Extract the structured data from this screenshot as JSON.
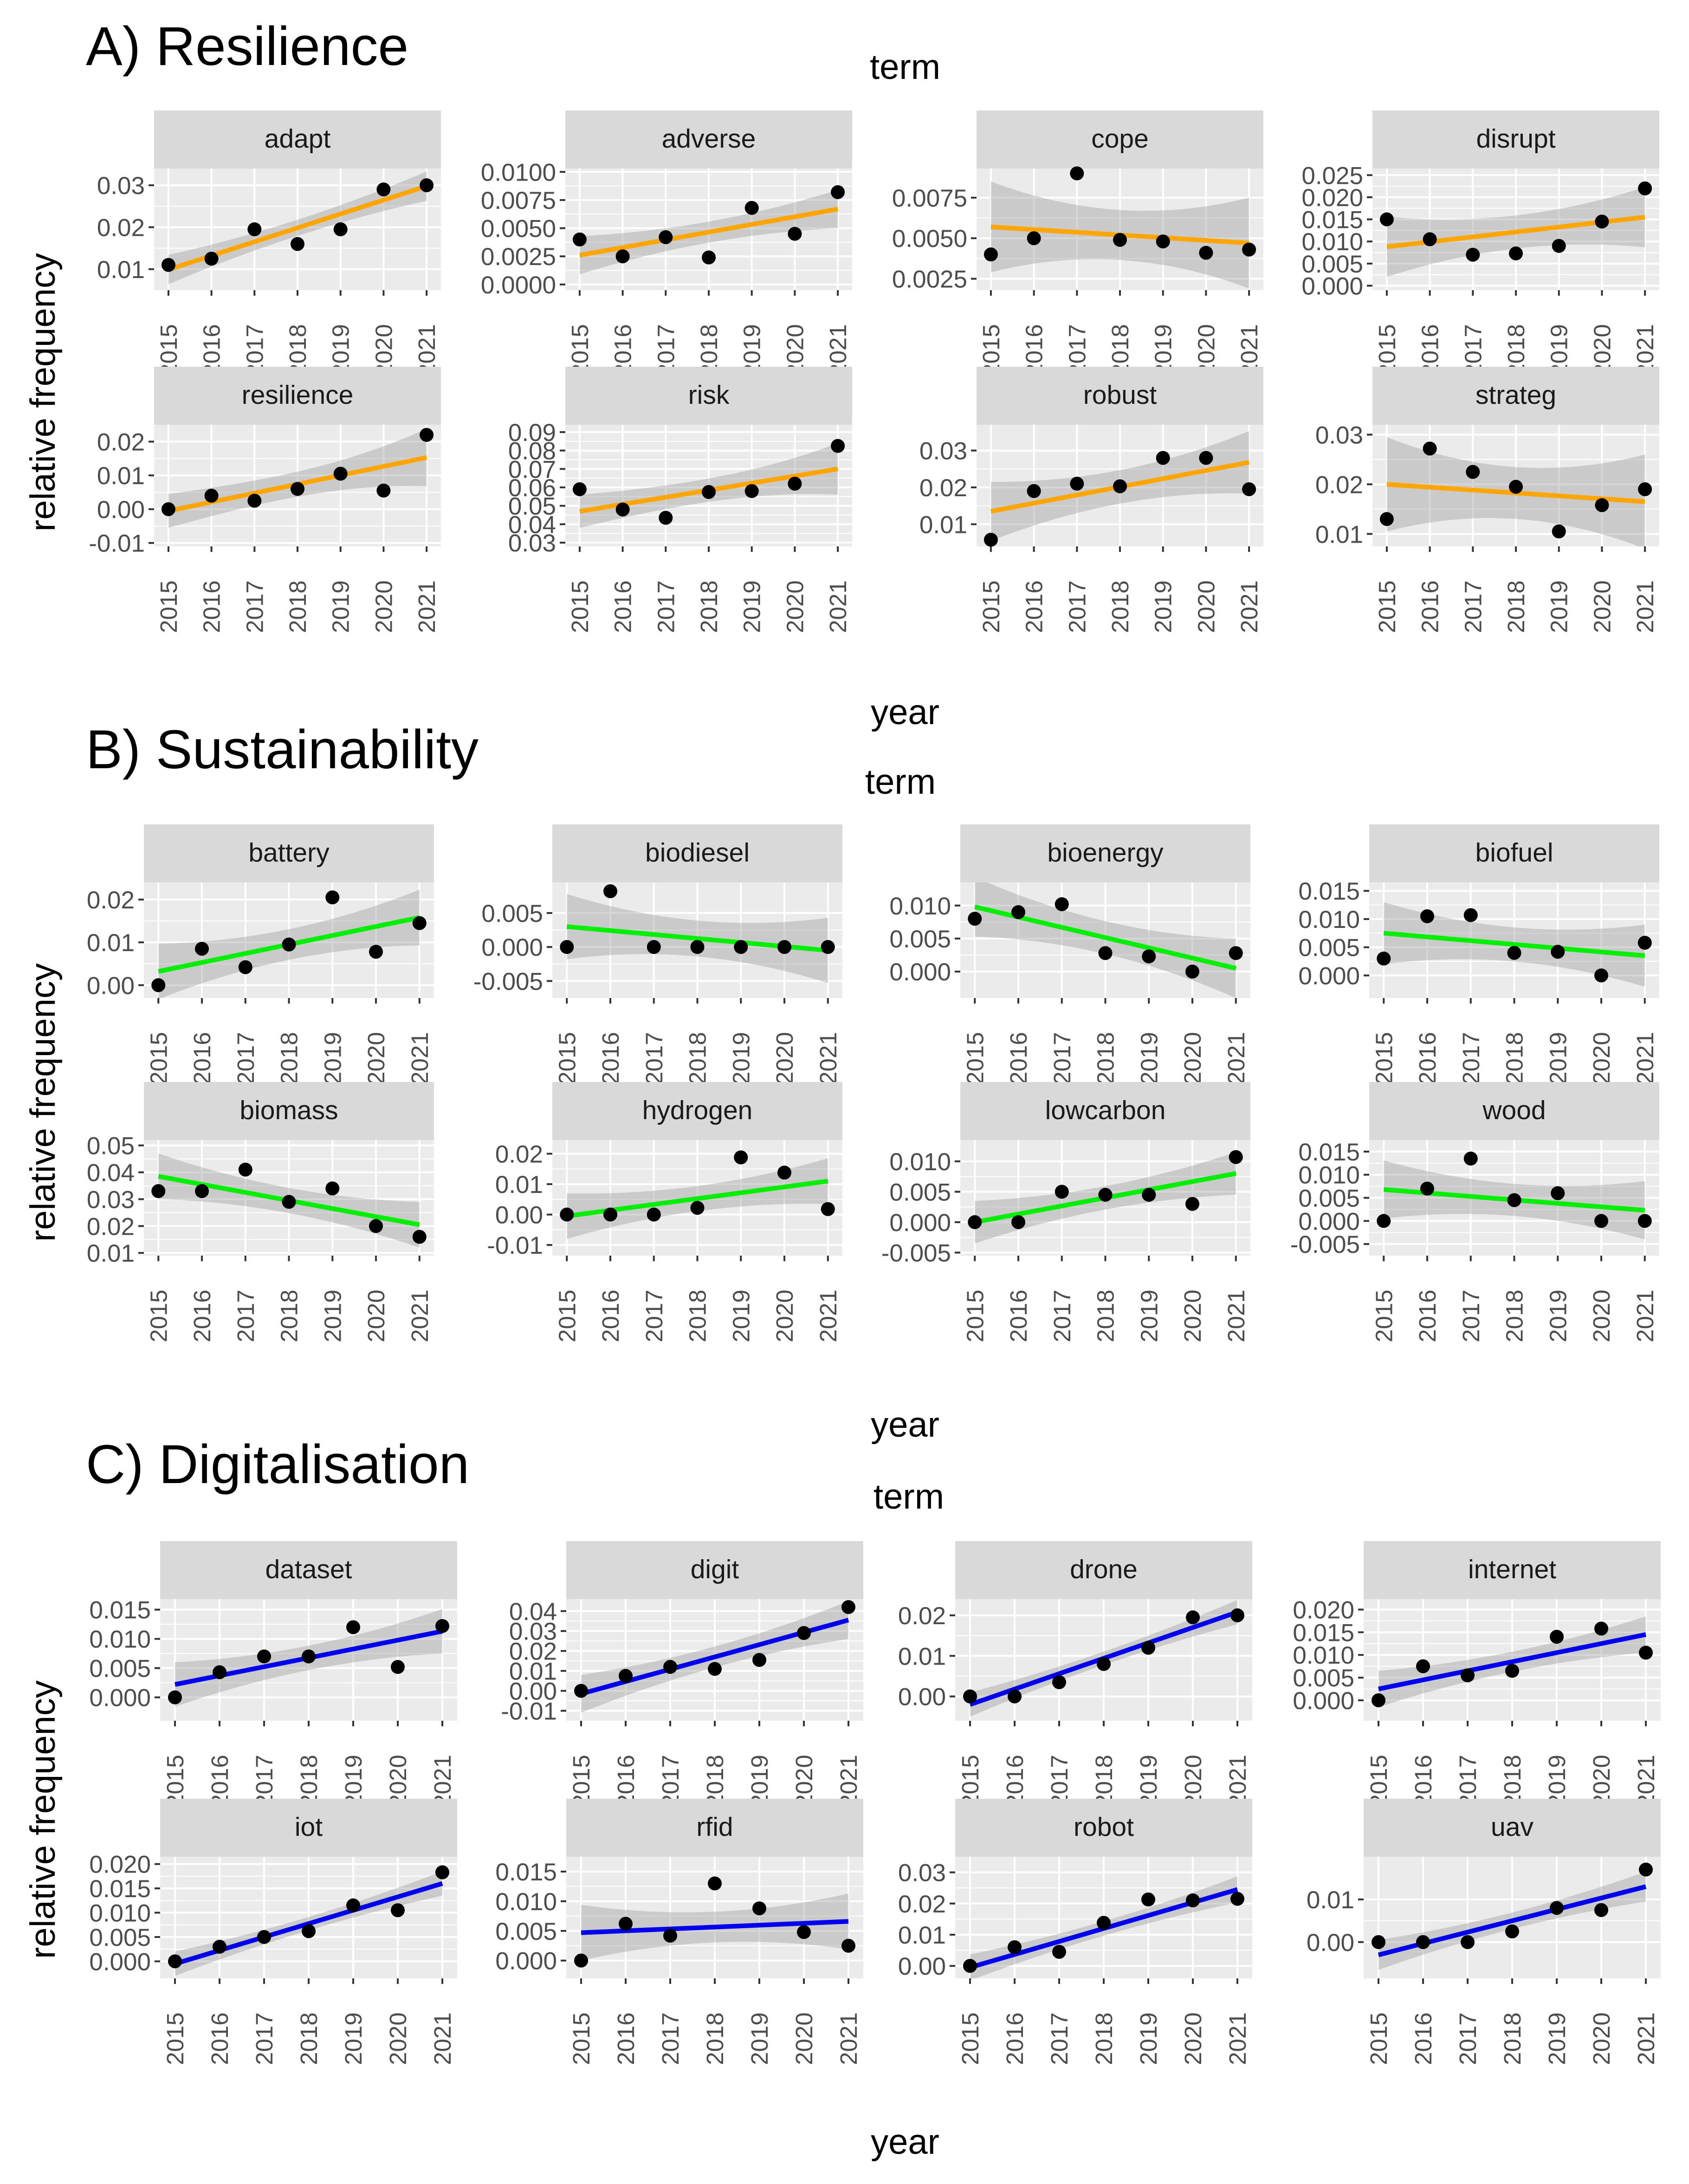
{
  "figure": {
    "x_axis_label": "year",
    "y_axis_label": "relative frequency",
    "facet_label": "term",
    "years": [
      "2015",
      "2016",
      "2017",
      "2018",
      "2019",
      "2020",
      "2021"
    ]
  },
  "chart_data": [
    {
      "section": "A) Resilience",
      "type": "scatter",
      "trend_color": "#ffa500",
      "facets": [
        {
          "term": "adapt",
          "ylim": [
            0.005,
            0.034
          ],
          "yticks": [
            0.01,
            0.02,
            0.03
          ],
          "ytick_labels": [
            "0.01",
            "0.02",
            "0.03"
          ],
          "values": [
            0.011,
            0.0125,
            0.0195,
            0.016,
            0.0195,
            0.029,
            0.03
          ],
          "fit": [
            0.0099,
            0.0298
          ],
          "band": [
            0.0035,
            0.0035
          ]
        },
        {
          "term": "adverse",
          "ylim": [
            -0.0005,
            0.0103
          ],
          "yticks": [
            0,
            0.0025,
            0.005,
            0.0075,
            0.01
          ],
          "ytick_labels": [
            "0.0000",
            "0.0025",
            "0.0050",
            "0.0075",
            "0.0100"
          ],
          "values": [
            0.004,
            0.0025,
            0.0042,
            0.0024,
            0.0068,
            0.0045,
            0.0082
          ],
          "fit": [
            0.0026,
            0.0067
          ],
          "band": [
            0.0017,
            0.0017
          ]
        },
        {
          "term": "cope",
          "ylim": [
            0.0018,
            0.0093
          ],
          "yticks": [
            0.0025,
            0.005,
            0.0075
          ],
          "ytick_labels": [
            "0.0025",
            "0.0050",
            "0.0075"
          ],
          "values": [
            0.004,
            0.005,
            0.009,
            0.0049,
            0.0048,
            0.0041,
            0.0043
          ],
          "fit": [
            0.0057,
            0.0047
          ],
          "band": [
            0.0028,
            0.0028
          ]
        },
        {
          "term": "disrupt",
          "ylim": [
            -0.001,
            0.0265
          ],
          "yticks": [
            0,
            0.005,
            0.01,
            0.015,
            0.02,
            0.025
          ],
          "ytick_labels": [
            "0.000",
            "0.005",
            "0.010",
            "0.015",
            "0.020",
            "0.025"
          ],
          "values": [
            0.015,
            0.0105,
            0.007,
            0.0073,
            0.009,
            0.0145,
            0.022
          ],
          "fit": [
            0.0088,
            0.0155
          ],
          "band": [
            0.0068,
            0.0068
          ]
        },
        {
          "term": "resilience",
          "ylim": [
            -0.011,
            0.025
          ],
          "yticks": [
            -0.01,
            0,
            0.01,
            0.02
          ],
          "ytick_labels": [
            "-0.01",
            "0.00",
            "0.01",
            "0.02"
          ],
          "values": [
            0.0,
            0.004,
            0.0025,
            0.006,
            0.0105,
            0.0055,
            0.022
          ],
          "fit": [
            -0.0005,
            0.0153
          ],
          "band": [
            0.005,
            0.0085
          ]
        },
        {
          "term": "risk",
          "ylim": [
            0.028,
            0.094
          ],
          "yticks": [
            0.03,
            0.04,
            0.05,
            0.06,
            0.07,
            0.08,
            0.09
          ],
          "ytick_labels": [
            "0.03",
            "0.04",
            "0.05",
            "0.06",
            "0.07",
            "0.08",
            "0.09"
          ],
          "values": [
            0.059,
            0.048,
            0.0435,
            0.0575,
            0.058,
            0.062,
            0.0825
          ],
          "fit": [
            0.047,
            0.07
          ],
          "band": [
            0.009,
            0.014
          ]
        },
        {
          "term": "robust",
          "ylim": [
            0.004,
            0.037
          ],
          "yticks": [
            0.01,
            0.02,
            0.03
          ],
          "ytick_labels": [
            "0.01",
            "0.02",
            "0.03"
          ],
          "values": [
            0.0058,
            0.019,
            0.021,
            0.0203,
            0.028,
            0.028,
            0.0195
          ],
          "fit": [
            0.0135,
            0.0268
          ],
          "band": [
            0.008,
            0.0085
          ]
        },
        {
          "term": "strateg",
          "ylim": [
            0.0075,
            0.032
          ],
          "yticks": [
            0.01,
            0.02,
            0.03
          ],
          "ytick_labels": [
            "0.01",
            "0.02",
            "0.03"
          ],
          "values": [
            0.013,
            0.0272,
            0.0225,
            0.0195,
            0.0105,
            0.0158,
            0.019
          ],
          "fit": [
            0.02,
            0.0165
          ],
          "band": [
            0.0095,
            0.0095
          ]
        }
      ]
    },
    {
      "section": "B) Sustainability",
      "type": "scatter",
      "trend_color": "#00ee00",
      "facets": [
        {
          "term": "battery",
          "ylim": [
            -0.003,
            0.024
          ],
          "yticks": [
            0,
            0.01,
            0.02
          ],
          "ytick_labels": [
            "0.00",
            "0.01",
            "0.02"
          ],
          "values": [
            0.0,
            0.0085,
            0.0042,
            0.0095,
            0.0205,
            0.0078,
            0.0145
          ],
          "fit": [
            0.0032,
            0.0158
          ],
          "band": [
            0.0065,
            0.0065
          ]
        },
        {
          "term": "biodiesel",
          "ylim": [
            -0.0075,
            0.0095
          ],
          "yticks": [
            -0.005,
            0,
            0.005
          ],
          "ytick_labels": [
            "-0.005",
            "0.000",
            "0.005"
          ],
          "values": [
            0.0,
            0.0082,
            0.0,
            0.0,
            0.0,
            0.0,
            0.0
          ],
          "fit": [
            0.003,
            -0.0005
          ],
          "band": [
            0.0048,
            0.0048
          ]
        },
        {
          "term": "bioenergy",
          "ylim": [
            -0.004,
            0.0135
          ],
          "yticks": [
            0,
            0.005,
            0.01
          ],
          "ytick_labels": [
            "0.000",
            "0.005",
            "0.010"
          ],
          "values": [
            0.008,
            0.009,
            0.0102,
            0.0028,
            0.0023,
            0.0,
            0.0028
          ],
          "fit": [
            0.0098,
            0.0005
          ],
          "band": [
            0.0045,
            0.0045
          ]
        },
        {
          "term": "biofuel",
          "ylim": [
            -0.004,
            0.0165
          ],
          "yticks": [
            0,
            0.005,
            0.01,
            0.015
          ],
          "ytick_labels": [
            "0.000",
            "0.005",
            "0.010",
            "0.015"
          ],
          "values": [
            0.003,
            0.0105,
            0.0107,
            0.004,
            0.0042,
            0.0,
            0.0058
          ],
          "fit": [
            0.0075,
            0.0035
          ],
          "band": [
            0.0055,
            0.0055
          ]
        },
        {
          "term": "biomass",
          "ylim": [
            0.009,
            0.052
          ],
          "yticks": [
            0.01,
            0.02,
            0.03,
            0.04,
            0.05
          ],
          "ytick_labels": [
            "0.01",
            "0.02",
            "0.03",
            "0.04",
            "0.05"
          ],
          "values": [
            0.033,
            0.033,
            0.041,
            0.029,
            0.034,
            0.02,
            0.016
          ],
          "fit": [
            0.0385,
            0.0205
          ],
          "band": [
            0.0085,
            0.0085
          ]
        },
        {
          "term": "hydrogen",
          "ylim": [
            -0.0135,
            0.0245
          ],
          "yticks": [
            -0.01,
            0,
            0.01,
            0.02
          ],
          "ytick_labels": [
            "-0.01",
            "0.00",
            "0.01",
            "0.02"
          ],
          "values": [
            0.0,
            0.0,
            0.0,
            0.0022,
            0.0188,
            0.0138,
            0.0018
          ],
          "fit": [
            -0.0005,
            0.011
          ],
          "band": [
            0.0075,
            0.0075
          ]
        },
        {
          "term": "lowcarbon",
          "ylim": [
            -0.0055,
            0.0135
          ],
          "yticks": [
            -0.005,
            0,
            0.005,
            0.01
          ],
          "ytick_labels": [
            "-0.005",
            "0.000",
            "0.005",
            "0.010"
          ],
          "values": [
            0.0,
            0.0,
            0.005,
            0.0045,
            0.0045,
            0.003,
            0.0107
          ],
          "fit": [
            0.0,
            0.008
          ],
          "band": [
            0.0035,
            0.0035
          ]
        },
        {
          "term": "wood",
          "ylim": [
            -0.0075,
            0.0175
          ],
          "yticks": [
            -0.005,
            0,
            0.005,
            0.01,
            0.015
          ],
          "ytick_labels": [
            "-0.005",
            "0.000",
            "0.005",
            "0.010",
            "0.015"
          ],
          "values": [
            0.0,
            0.007,
            0.0135,
            0.0045,
            0.006,
            0.0,
            0.0
          ],
          "fit": [
            0.0068,
            0.0023
          ],
          "band": [
            0.0063,
            0.0063
          ]
        }
      ]
    },
    {
      "section": "C) Digitalisation",
      "type": "scatter",
      "trend_color": "#0000ee",
      "facets": [
        {
          "term": "dataset",
          "ylim": [
            -0.004,
            0.0168
          ],
          "yticks": [
            0,
            0.005,
            0.01,
            0.015
          ],
          "ytick_labels": [
            "0.000",
            "0.005",
            "0.010",
            "0.015"
          ],
          "values": [
            0.0,
            0.0043,
            0.007,
            0.007,
            0.012,
            0.0052,
            0.0122
          ],
          "fit": [
            0.0022,
            0.0113
          ],
          "band": [
            0.0038,
            0.0038
          ]
        },
        {
          "term": "digit",
          "ylim": [
            -0.015,
            0.046
          ],
          "yticks": [
            -0.01,
            0,
            0.01,
            0.02,
            0.03,
            0.04
          ],
          "ytick_labels": [
            "-0.01",
            "0.00",
            "0.01",
            "0.02",
            "0.03",
            "0.04"
          ],
          "values": [
            0.0,
            0.0075,
            0.012,
            0.011,
            0.0155,
            0.029,
            0.042
          ],
          "fit": [
            -0.0015,
            0.0355
          ],
          "band": [
            0.0095,
            0.0095
          ]
        },
        {
          "term": "drone",
          "ylim": [
            -0.006,
            0.024
          ],
          "yticks": [
            0,
            0.01,
            0.02
          ],
          "ytick_labels": [
            "0.00",
            "0.01",
            "0.02"
          ],
          "values": [
            0.0,
            0.0,
            0.0035,
            0.008,
            0.012,
            0.0195,
            0.02
          ],
          "fit": [
            -0.002,
            0.0208
          ],
          "band": [
            0.003,
            0.003
          ]
        },
        {
          "term": "internet",
          "ylim": [
            -0.0045,
            0.0223
          ],
          "yticks": [
            0,
            0.005,
            0.01,
            0.015,
            0.02
          ],
          "ytick_labels": [
            "0.000",
            "0.005",
            "0.010",
            "0.015",
            "0.020"
          ],
          "values": [
            0.0,
            0.0075,
            0.0055,
            0.0065,
            0.014,
            0.0158,
            0.0105
          ],
          "fit": [
            0.0025,
            0.0145
          ],
          "band": [
            0.004,
            0.004
          ]
        },
        {
          "term": "iot",
          "ylim": [
            -0.0035,
            0.0215
          ],
          "yticks": [
            0,
            0.005,
            0.01,
            0.015,
            0.02
          ],
          "ytick_labels": [
            "0.000",
            "0.005",
            "0.010",
            "0.015",
            "0.020"
          ],
          "values": [
            0.0,
            0.003,
            0.005,
            0.0062,
            0.0115,
            0.0105,
            0.0183
          ],
          "fit": [
            -0.0005,
            0.016
          ],
          "band": [
            0.0025,
            0.0025
          ]
        },
        {
          "term": "rfid",
          "ylim": [
            -0.003,
            0.0175
          ],
          "yticks": [
            0,
            0.005,
            0.01,
            0.015
          ],
          "ytick_labels": [
            "0.000",
            "0.005",
            "0.010",
            "0.015"
          ],
          "values": [
            0.0,
            0.0062,
            0.0042,
            0.013,
            0.0088,
            0.0048,
            0.0025
          ],
          "fit": [
            0.0047,
            0.0066
          ],
          "band": [
            0.0047,
            0.0047
          ]
        },
        {
          "term": "robot",
          "ylim": [
            -0.004,
            0.035
          ],
          "yticks": [
            0,
            0.01,
            0.02,
            0.03
          ],
          "ytick_labels": [
            "0.00",
            "0.01",
            "0.02",
            "0.03"
          ],
          "values": [
            0.0,
            0.006,
            0.0045,
            0.0138,
            0.0213,
            0.021,
            0.0215
          ],
          "fit": [
            -0.0005,
            0.0245
          ],
          "band": [
            0.0042,
            0.0042
          ]
        },
        {
          "term": "uav",
          "ylim": [
            -0.0085,
            0.02
          ],
          "yticks": [
            0,
            0.01
          ],
          "ytick_labels": [
            "0.00",
            "0.01"
          ],
          "values": [
            0.0,
            0.0,
            0.0,
            0.0025,
            0.008,
            0.0075,
            0.017
          ],
          "fit": [
            -0.003,
            0.013
          ],
          "band": [
            0.0035,
            0.0035
          ]
        }
      ]
    }
  ]
}
